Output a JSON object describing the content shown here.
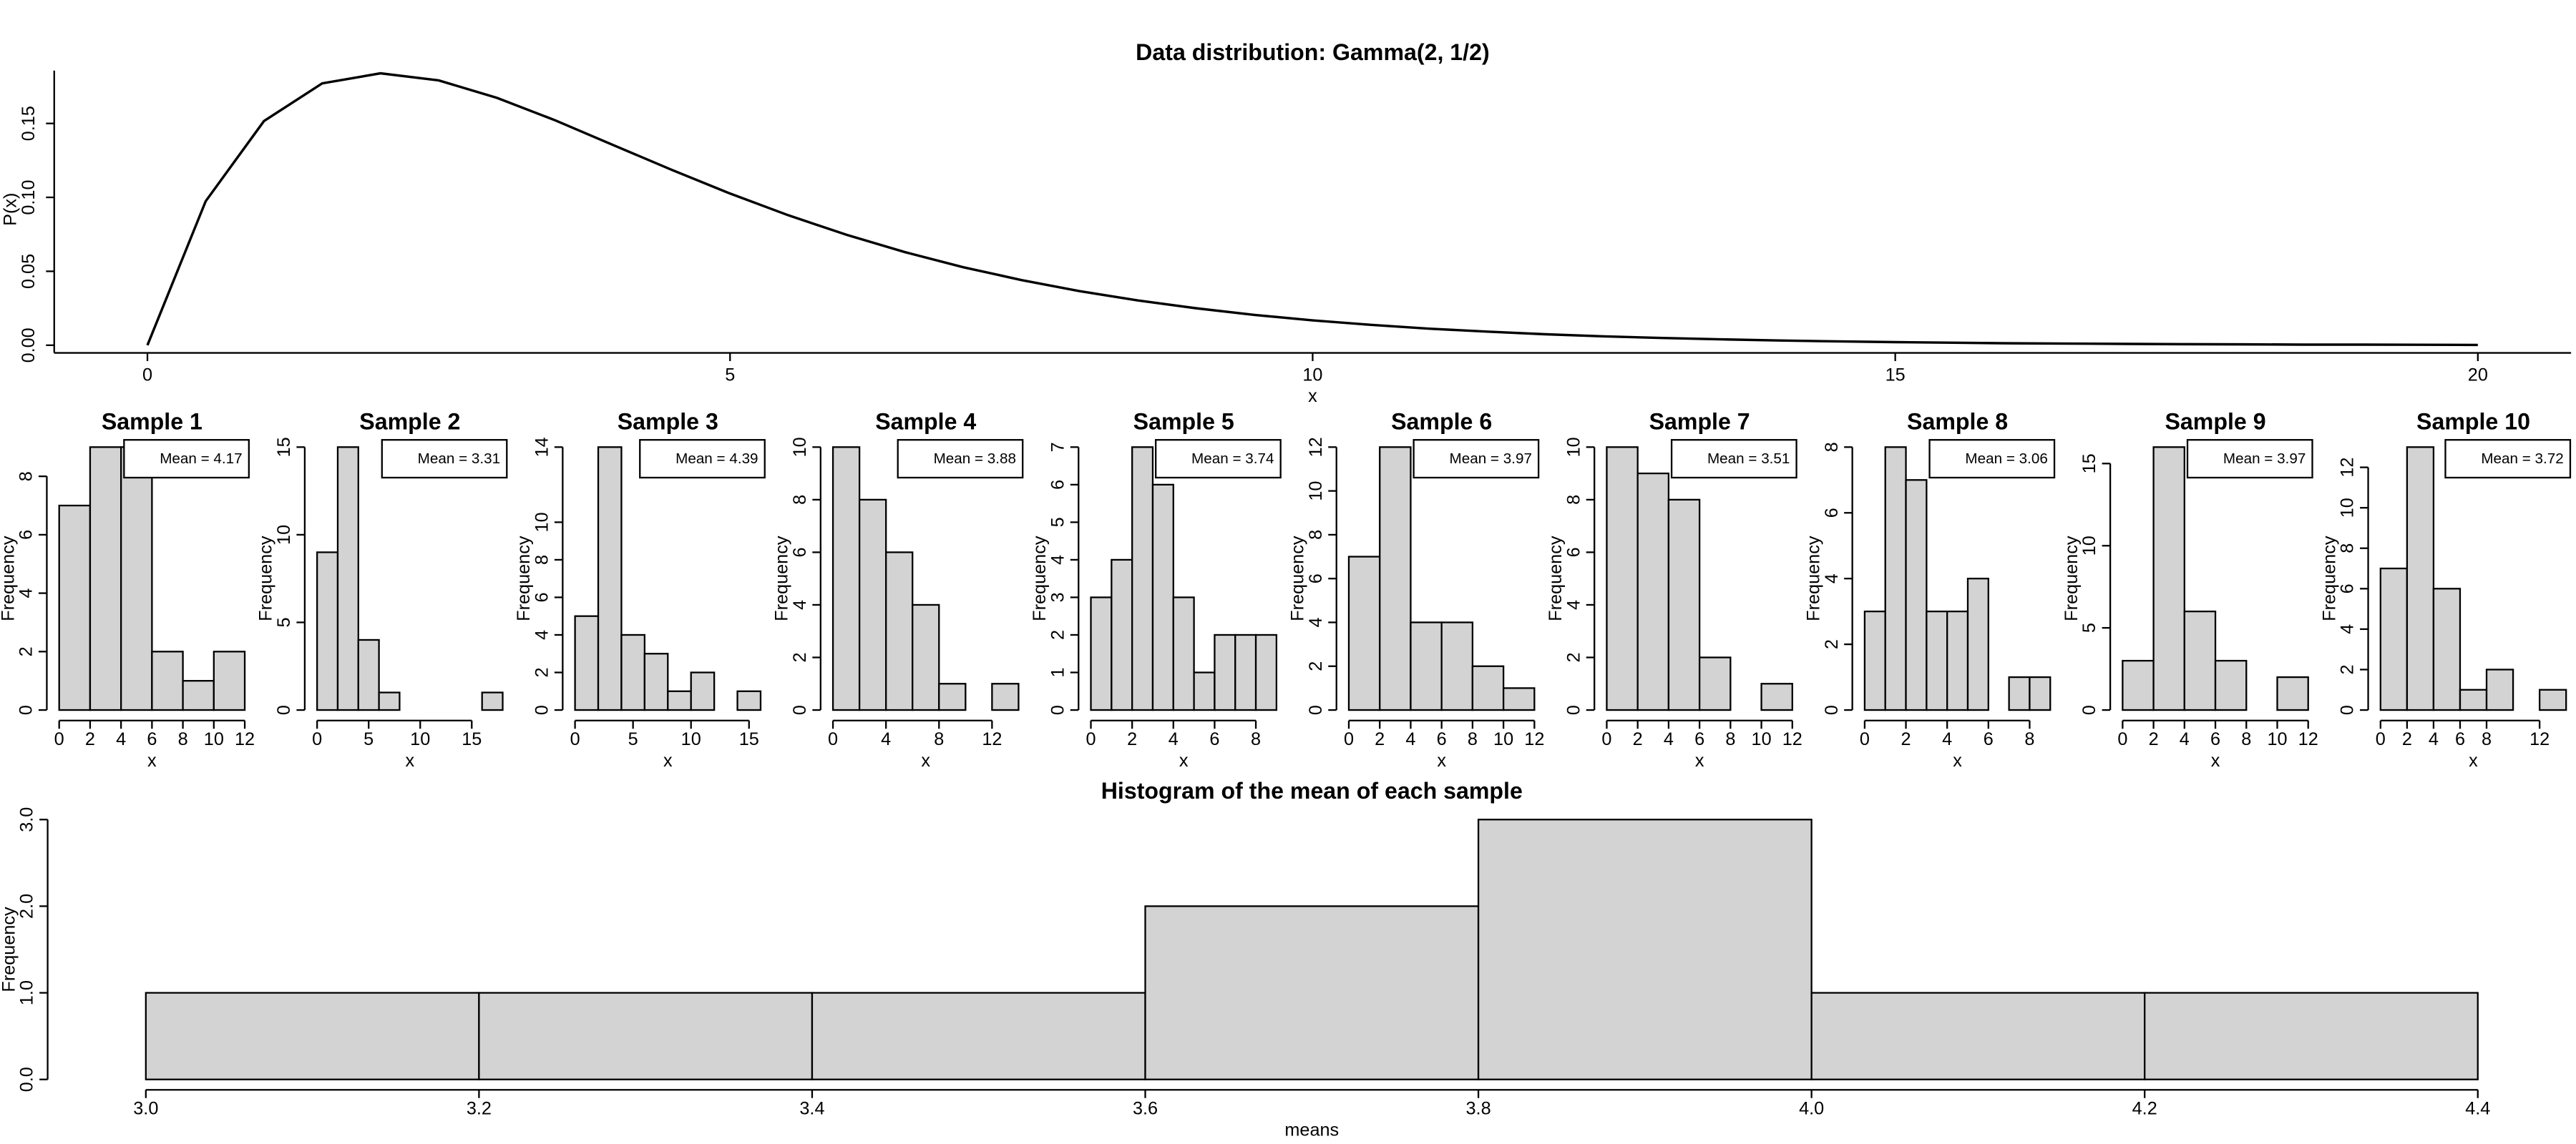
{
  "chart_data": [
    {
      "type": "line",
      "title": "Data distribution: Gamma(2, 1/2)",
      "xlabel": "x",
      "ylabel": "P(x)",
      "x": [
        0,
        0.5,
        1,
        1.5,
        2,
        2.5,
        3,
        3.5,
        4,
        4.5,
        5,
        5.5,
        6,
        6.5,
        7,
        7.5,
        8,
        8.5,
        9,
        9.5,
        10,
        10.5,
        11,
        11.5,
        12,
        12.5,
        13,
        13.5,
        14,
        14.5,
        15,
        15.5,
        16,
        16.5,
        17,
        17.5,
        18,
        18.5,
        19,
        19.5,
        20
      ],
      "values": [
        0,
        0.0974,
        0.1516,
        0.1771,
        0.1839,
        0.1791,
        0.1673,
        0.1521,
        0.1353,
        0.1186,
        0.1026,
        0.0879,
        0.0747,
        0.063,
        0.0528,
        0.0441,
        0.0366,
        0.0303,
        0.025,
        0.0205,
        0.0168,
        0.0138,
        0.0112,
        0.0092,
        0.0074,
        0.006,
        0.0049,
        0.004,
        0.0032,
        0.0026,
        0.0021,
        0.0017,
        0.0013,
        0.0011,
        0.0009,
        0.0007,
        0.0006,
        0.0004,
        0.0004,
        0.0003,
        0.0002
      ],
      "color": "#000000",
      "xlim": [
        -0.8,
        20.8
      ],
      "ylim": [
        -0.0074,
        0.1913
      ],
      "xticks": [
        0,
        5,
        10,
        15,
        20
      ],
      "yticks": [
        {
          "value": 0,
          "label": "0.00"
        },
        {
          "value": 0.05,
          "label": "0.05"
        },
        {
          "value": 0.1,
          "label": "0.10"
        },
        {
          "value": 0.15,
          "label": "0.15"
        }
      ]
    },
    {
      "type": "histogram",
      "title": "Sample 1",
      "xlabel": "x",
      "ylabel": "Frequency",
      "annotation": "Mean =  4.17",
      "color": "#d3d3d3",
      "bins": [
        0,
        2,
        4,
        6,
        8,
        10,
        12
      ],
      "values": [
        7,
        9,
        9,
        2,
        1,
        2
      ],
      "xlim": [
        -0.48,
        12.48
      ],
      "ylim": [
        -0.36,
        9.36
      ],
      "xticks": [
        0,
        2,
        4,
        6,
        8,
        10,
        12
      ],
      "yticks": [
        0,
        2,
        4,
        6,
        8
      ]
    },
    {
      "type": "histogram",
      "title": "Sample 2",
      "xlabel": "x",
      "ylabel": "Frequency",
      "annotation": "Mean =  3.31",
      "color": "#d3d3d3",
      "bins": [
        0,
        2,
        4,
        6,
        8,
        10,
        12,
        14,
        16,
        18
      ],
      "values": [
        9,
        15,
        4,
        1,
        0,
        0,
        0,
        0,
        1
      ],
      "xlim": [
        -0.72,
        18.72
      ],
      "ylim": [
        -0.6,
        15.6
      ],
      "xticks": [
        0,
        5,
        10,
        15
      ],
      "yticks": [
        0,
        5,
        10,
        15
      ]
    },
    {
      "type": "histogram",
      "title": "Sample 3",
      "xlabel": "x",
      "ylabel": "Frequency",
      "annotation": "Mean =  4.39",
      "color": "#d3d3d3",
      "bins": [
        0,
        2,
        4,
        6,
        8,
        10,
        12,
        14,
        16
      ],
      "values": [
        5,
        14,
        4,
        3,
        1,
        2,
        0,
        1
      ],
      "xlim": [
        -0.64,
        16.64
      ],
      "ylim": [
        -0.56,
        14.56
      ],
      "xticks": [
        0,
        5,
        10,
        15
      ],
      "yticks": [
        0,
        2,
        4,
        6,
        8,
        10,
        14
      ]
    },
    {
      "type": "histogram",
      "title": "Sample 4",
      "xlabel": "x",
      "ylabel": "Frequency",
      "annotation": "Mean =  3.88",
      "color": "#d3d3d3",
      "bins": [
        0,
        2,
        4,
        6,
        8,
        10,
        12,
        14
      ],
      "values": [
        10,
        8,
        6,
        4,
        1,
        0,
        1
      ],
      "xlim": [
        -0.56,
        14.56
      ],
      "ylim": [
        -0.4,
        10.4
      ],
      "xticks": [
        0,
        4,
        8,
        12
      ],
      "yticks": [
        0,
        2,
        4,
        6,
        8,
        10
      ]
    },
    {
      "type": "histogram",
      "title": "Sample 5",
      "xlabel": "x",
      "ylabel": "Frequency",
      "annotation": "Mean =  3.74",
      "color": "#d3d3d3",
      "bins": [
        0,
        1,
        2,
        3,
        4,
        5,
        6,
        7,
        8,
        9
      ],
      "values": [
        3,
        4,
        7,
        6,
        3,
        1,
        2,
        2,
        2
      ],
      "xlim": [
        -0.36,
        9.36
      ],
      "ylim": [
        -0.28,
        7.28
      ],
      "xticks": [
        0,
        2,
        4,
        6,
        8
      ],
      "yticks": [
        0,
        1,
        2,
        3,
        4,
        5,
        6,
        7
      ]
    },
    {
      "type": "histogram",
      "title": "Sample 6",
      "xlabel": "x",
      "ylabel": "Frequency",
      "annotation": "Mean =  3.97",
      "color": "#d3d3d3",
      "bins": [
        0,
        2,
        4,
        6,
        8,
        10,
        12
      ],
      "values": [
        7,
        12,
        4,
        4,
        2,
        1
      ],
      "xlim": [
        -0.48,
        12.48
      ],
      "ylim": [
        -0.48,
        12.48
      ],
      "xticks": [
        0,
        2,
        4,
        6,
        8,
        10,
        12
      ],
      "yticks": [
        0,
        2,
        4,
        6,
        8,
        10,
        12
      ]
    },
    {
      "type": "histogram",
      "title": "Sample 7",
      "xlabel": "x",
      "ylabel": "Frequency",
      "annotation": "Mean =  3.51",
      "color": "#d3d3d3",
      "bins": [
        0,
        2,
        4,
        6,
        8,
        10,
        12
      ],
      "values": [
        10,
        9,
        8,
        2,
        0,
        1
      ],
      "xlim": [
        -0.48,
        12.48
      ],
      "ylim": [
        -0.4,
        10.4
      ],
      "xticks": [
        0,
        2,
        4,
        6,
        8,
        10,
        12
      ],
      "yticks": [
        0,
        2,
        4,
        6,
        8,
        10
      ]
    },
    {
      "type": "histogram",
      "title": "Sample 8",
      "xlabel": "x",
      "ylabel": "Frequency",
      "annotation": "Mean =  3.06",
      "color": "#d3d3d3",
      "bins": [
        0,
        1,
        2,
        3,
        4,
        5,
        6,
        7,
        8,
        9
      ],
      "values": [
        3,
        8,
        7,
        3,
        3,
        4,
        0,
        1,
        1
      ],
      "xlim": [
        -0.36,
        9.36
      ],
      "ylim": [
        -0.32,
        8.32
      ],
      "xticks": [
        0,
        2,
        4,
        6,
        8
      ],
      "yticks": [
        0,
        2,
        4,
        6,
        8
      ]
    },
    {
      "type": "histogram",
      "title": "Sample 9",
      "xlabel": "x",
      "ylabel": "Frequency",
      "annotation": "Mean =  3.97",
      "color": "#d3d3d3",
      "bins": [
        0,
        2,
        4,
        6,
        8,
        10,
        12
      ],
      "values": [
        3,
        16,
        6,
        3,
        0,
        2
      ],
      "xlim": [
        -0.48,
        12.48
      ],
      "ylim": [
        -0.64,
        16.64
      ],
      "xticks": [
        0,
        2,
        4,
        6,
        8,
        10,
        12
      ],
      "yticks": [
        0,
        5,
        10,
        15
      ]
    },
    {
      "type": "histogram",
      "title": "Sample 10",
      "xlabel": "x",
      "ylabel": "Frequency",
      "annotation": "Mean =  3.72",
      "color": "#d3d3d3",
      "bins": [
        0,
        2,
        4,
        6,
        8,
        10,
        12,
        14
      ],
      "values": [
        7,
        13,
        6,
        1,
        2,
        0,
        1
      ],
      "xlim": [
        -0.56,
        14.56
      ],
      "ylim": [
        -0.52,
        13.52
      ],
      "xticks": [
        0,
        2,
        4,
        6,
        8,
        12
      ],
      "yticks": [
        0,
        2,
        4,
        6,
        8,
        10,
        12
      ]
    },
    {
      "type": "histogram",
      "title": "Histogram of the mean of each sample",
      "xlabel": "means",
      "ylabel": "Frequency",
      "color": "#d3d3d3",
      "bins": [
        3,
        3.2,
        3.4,
        3.6,
        3.8,
        4,
        4.2,
        4.4
      ],
      "values": [
        1,
        1,
        1,
        2,
        3,
        1,
        1
      ],
      "xlim": [
        2.944,
        4.456
      ],
      "ylim": [
        -0.12,
        3.12
      ],
      "xticks": [
        {
          "value": 3,
          "label": "3.0"
        },
        {
          "value": 3.2,
          "label": "3.2"
        },
        {
          "value": 3.4,
          "label": "3.4"
        },
        {
          "value": 3.6,
          "label": "3.6"
        },
        {
          "value": 3.8,
          "label": "3.8"
        },
        {
          "value": 4,
          "label": "4.0"
        },
        {
          "value": 4.2,
          "label": "4.2"
        },
        {
          "value": 4.4,
          "label": "4.4"
        }
      ],
      "yticks": [
        {
          "value": 0,
          "label": "0.0"
        },
        {
          "value": 1,
          "label": "1.0"
        },
        {
          "value": 2,
          "label": "2.0"
        },
        {
          "value": 3,
          "label": "3.0"
        }
      ]
    }
  ]
}
